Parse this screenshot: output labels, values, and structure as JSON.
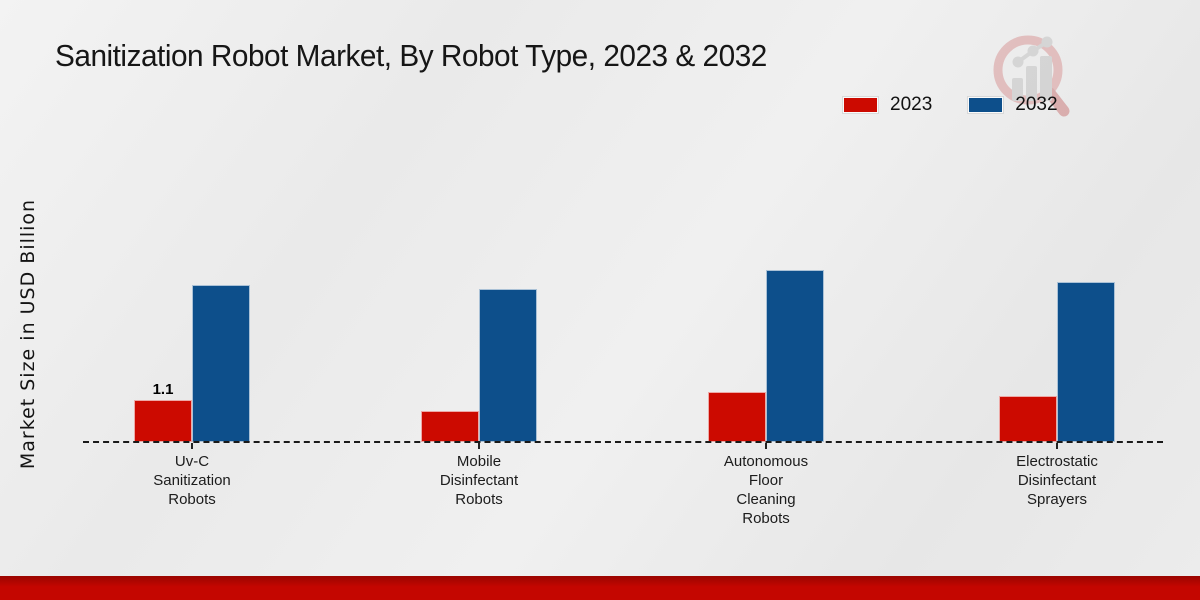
{
  "page": {
    "title": "Sanitization Robot Market, By Robot Type, 2023 & 2032",
    "ylabel": "Market Size in USD Billion"
  },
  "legend": {
    "items": [
      {
        "label": "2023",
        "color": "#cc0a00"
      },
      {
        "label": "2032",
        "color": "#0d4f8b"
      }
    ]
  },
  "chart_data": {
    "type": "bar",
    "title": "Sanitization Robot Market, By Robot Type, 2023 & 2032",
    "xlabel": "",
    "ylabel": "Market Size in USD Billion",
    "categories": [
      [
        "Uv-C",
        "Sanitization",
        "Robots"
      ],
      [
        "Mobile",
        "Disinfectant",
        "Robots"
      ],
      [
        "Autonomous",
        "Floor",
        "Cleaning",
        "Robots"
      ],
      [
        "Electrostatic",
        "Disinfectant",
        "Sprayers"
      ]
    ],
    "series": [
      {
        "name": "2023",
        "color": "#cc0a00",
        "values": [
          1.1,
          0.8,
          1.3,
          1.2
        ]
      },
      {
        "name": "2032",
        "color": "#0d4f8b",
        "values": [
          4.1,
          4.0,
          4.5,
          4.2
        ]
      }
    ],
    "value_labels": [
      {
        "series_index": 0,
        "category_index": 0,
        "text": "1.1"
      }
    ],
    "ylim": [
      0,
      5
    ],
    "grid": false,
    "axis_line_style": "dashed",
    "legend_position": "top-right"
  },
  "watermark": {
    "name": "magnifier-bar-chart-logo"
  },
  "footer": {
    "accent_color": "#c40600"
  }
}
